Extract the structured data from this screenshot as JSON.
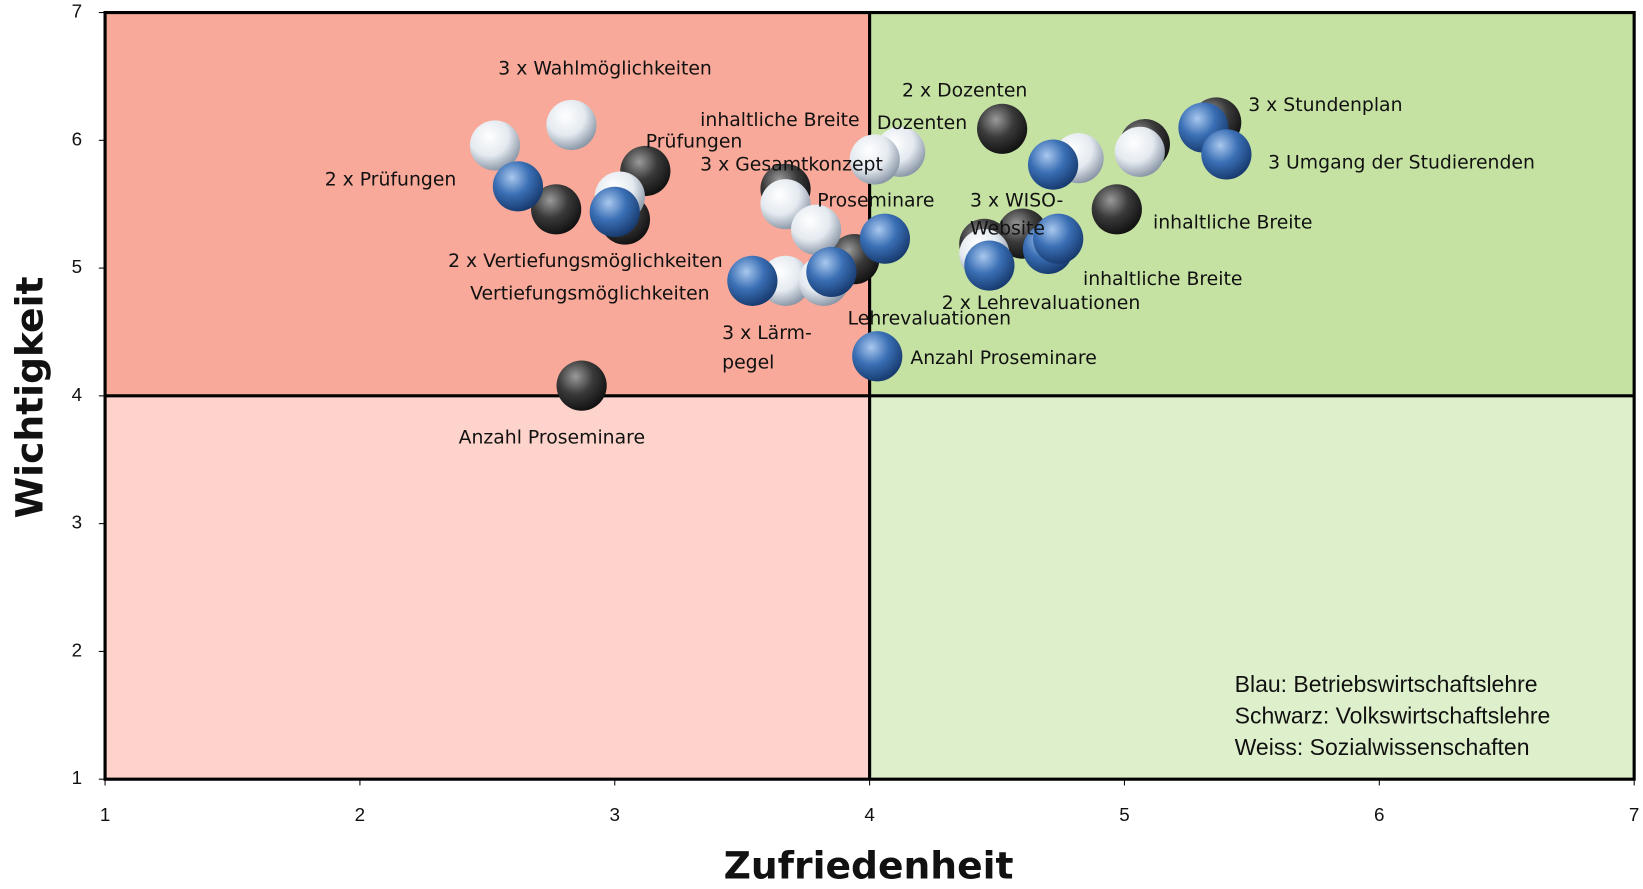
{
  "chart_data": {
    "type": "scatter",
    "xlabel": "Zufriedenheit",
    "ylabel": "Wichtigkeit",
    "xlim": [
      1,
      7
    ],
    "ylim": [
      1,
      7
    ],
    "xticks": [
      1,
      2,
      3,
      4,
      5,
      6,
      7
    ],
    "yticks": [
      1,
      2,
      3,
      4,
      5,
      6,
      7
    ],
    "quadrant_lines": {
      "x": 4,
      "y": 4
    },
    "series": [
      {
        "name": "Schwarz: Volkswirtschaftslehre",
        "color": "#3a3a3a",
        "x": [
          2.77,
          3.12,
          3.04,
          3.67,
          3.94,
          4.52,
          4.45,
          4.6,
          5.08,
          4.97,
          5.36,
          2.87
        ],
        "values": [
          5.46,
          5.76,
          5.38,
          5.62,
          5.07,
          6.09,
          5.19,
          5.27,
          5.97,
          5.46,
          6.14,
          4.08
        ]
      },
      {
        "name": "Weiss: Sozialwissenschaften",
        "color": "#e8eef4",
        "x": [
          2.53,
          2.83,
          3.02,
          3.67,
          3.79,
          3.67,
          3.82,
          4.12,
          4.02,
          4.45,
          4.82,
          5.06
        ],
        "values": [
          5.96,
          6.12,
          5.56,
          5.5,
          5.3,
          4.9,
          4.9,
          5.91,
          5.85,
          5.11,
          5.86,
          5.91
        ]
      },
      {
        "name": "Blau: Betriebswirtschaftslehre",
        "color": "#3a6fb5",
        "x": [
          2.62,
          3.0,
          3.54,
          3.85,
          4.06,
          4.03,
          4.47,
          4.72,
          4.7,
          4.74,
          5.31,
          5.4
        ],
        "values": [
          5.64,
          5.44,
          4.9,
          4.97,
          5.23,
          4.31,
          5.02,
          5.81,
          5.15,
          5.23,
          6.1,
          5.89
        ]
      }
    ],
    "legend_order": [
      2,
      0,
      1
    ],
    "annotations": [
      "3 x Wahlmöglichkeiten",
      "inhaltliche Breite",
      "Prüfungen",
      "2 x Prüfungen",
      "3 x Gesamtkonzept",
      "2 x Dozenten",
      "Dozenten",
      "3 x Stundenplan",
      "3 Umgang der Studierenden",
      "Proseminare",
      "3 x WISO-",
      "Website",
      "inhaltliche Breite",
      "2 x Vertiefungsmöglichkeiten",
      "Vertiefungsmöglichkeiten",
      "inhaltliche Breite",
      "2 x Lehrevaluationen",
      "Lehrevaluationen",
      "3 x Lärm-",
      "pegel",
      "Anzahl Proseminare",
      "Anzahl Proseminare"
    ]
  }
}
